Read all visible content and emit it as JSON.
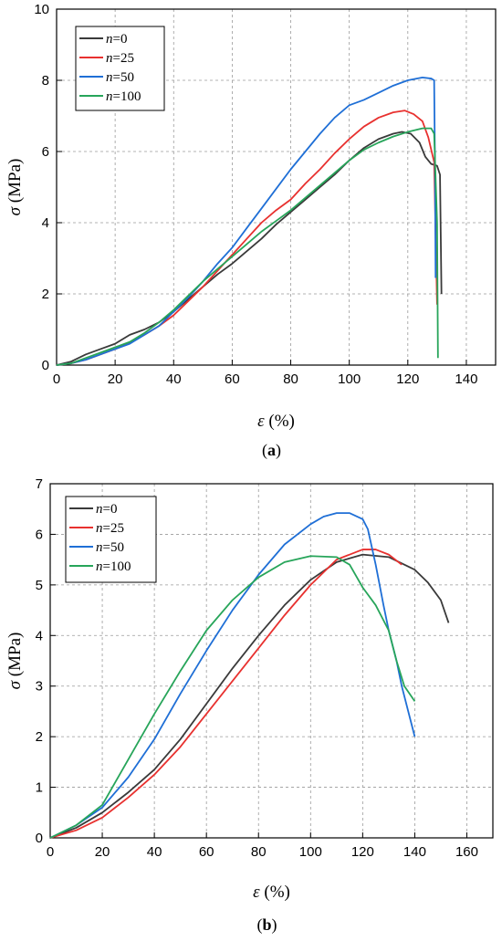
{
  "chart_data": [
    {
      "type": "line",
      "caption_prefix": "(",
      "caption_letter": "a",
      "caption_suffix": ")",
      "xlabel_symbol": "ε",
      "xlabel_unit": " (%)",
      "ylabel_symbol": "σ",
      "ylabel_unit": " (MPa)",
      "xlim": [
        0,
        150
      ],
      "ylim": [
        0,
        10
      ],
      "xticks": [
        0,
        20,
        40,
        60,
        80,
        100,
        120,
        140
      ],
      "yticks": [
        0,
        2,
        4,
        6,
        8,
        10
      ],
      "grid": true,
      "legend_position": "top-left",
      "series": [
        {
          "name_var": "n",
          "name_val": "=0",
          "color": "#3a3a3a",
          "points": [
            [
              0,
              0
            ],
            [
              5,
              0.1
            ],
            [
              10,
              0.3
            ],
            [
              15,
              0.45
            ],
            [
              20,
              0.6
            ],
            [
              25,
              0.85
            ],
            [
              30,
              1.0
            ],
            [
              35,
              1.2
            ],
            [
              40,
              1.5
            ],
            [
              45,
              1.85
            ],
            [
              50,
              2.2
            ],
            [
              55,
              2.55
            ],
            [
              60,
              2.85
            ],
            [
              65,
              3.2
            ],
            [
              70,
              3.55
            ],
            [
              75,
              3.95
            ],
            [
              80,
              4.3
            ],
            [
              85,
              4.65
            ],
            [
              90,
              5.0
            ],
            [
              95,
              5.35
            ],
            [
              100,
              5.75
            ],
            [
              105,
              6.1
            ],
            [
              110,
              6.35
            ],
            [
              115,
              6.5
            ],
            [
              118,
              6.55
            ],
            [
              121,
              6.5
            ],
            [
              124,
              6.25
            ],
            [
              126,
              5.85
            ],
            [
              128,
              5.65
            ],
            [
              130,
              5.6
            ],
            [
              131,
              5.35
            ],
            [
              131.5,
              2.0
            ]
          ]
        },
        {
          "name_var": "n",
          "name_val": "=25",
          "color": "#e8312f",
          "points": [
            [
              0,
              0
            ],
            [
              5,
              0.05
            ],
            [
              10,
              0.15
            ],
            [
              15,
              0.3
            ],
            [
              20,
              0.45
            ],
            [
              25,
              0.62
            ],
            [
              30,
              0.85
            ],
            [
              35,
              1.1
            ],
            [
              40,
              1.4
            ],
            [
              45,
              1.8
            ],
            [
              50,
              2.2
            ],
            [
              55,
              2.65
            ],
            [
              60,
              3.1
            ],
            [
              65,
              3.55
            ],
            [
              70,
              4.0
            ],
            [
              75,
              4.35
            ],
            [
              80,
              4.65
            ],
            [
              85,
              5.1
            ],
            [
              90,
              5.5
            ],
            [
              95,
              5.95
            ],
            [
              100,
              6.35
            ],
            [
              105,
              6.7
            ],
            [
              110,
              6.95
            ],
            [
              115,
              7.1
            ],
            [
              119,
              7.15
            ],
            [
              122,
              7.05
            ],
            [
              125,
              6.85
            ],
            [
              127,
              6.4
            ],
            [
              129,
              5.7
            ],
            [
              130,
              1.7
            ]
          ]
        },
        {
          "name_var": "n",
          "name_val": "=50",
          "color": "#1f6fd6",
          "points": [
            [
              0,
              0
            ],
            [
              5,
              0.05
            ],
            [
              10,
              0.15
            ],
            [
              15,
              0.3
            ],
            [
              20,
              0.45
            ],
            [
              25,
              0.6
            ],
            [
              30,
              0.85
            ],
            [
              35,
              1.1
            ],
            [
              40,
              1.5
            ],
            [
              45,
              1.9
            ],
            [
              50,
              2.35
            ],
            [
              55,
              2.85
            ],
            [
              60,
              3.3
            ],
            [
              65,
              3.85
            ],
            [
              70,
              4.4
            ],
            [
              75,
              4.95
            ],
            [
              80,
              5.5
            ],
            [
              85,
              6.0
            ],
            [
              90,
              6.5
            ],
            [
              95,
              6.95
            ],
            [
              100,
              7.3
            ],
            [
              105,
              7.45
            ],
            [
              110,
              7.65
            ],
            [
              115,
              7.85
            ],
            [
              120,
              8.0
            ],
            [
              125,
              8.08
            ],
            [
              128,
              8.05
            ],
            [
              129,
              8.0
            ],
            [
              129.3,
              5.5
            ],
            [
              129.5,
              2.45
            ]
          ]
        },
        {
          "name_var": "n",
          "name_val": "=100",
          "color": "#27a55a",
          "points": [
            [
              0,
              0
            ],
            [
              5,
              0.05
            ],
            [
              10,
              0.2
            ],
            [
              15,
              0.35
            ],
            [
              20,
              0.5
            ],
            [
              25,
              0.65
            ],
            [
              30,
              0.9
            ],
            [
              35,
              1.2
            ],
            [
              40,
              1.55
            ],
            [
              45,
              1.95
            ],
            [
              50,
              2.35
            ],
            [
              55,
              2.7
            ],
            [
              60,
              3.05
            ],
            [
              65,
              3.4
            ],
            [
              70,
              3.75
            ],
            [
              75,
              4.05
            ],
            [
              80,
              4.35
            ],
            [
              85,
              4.7
            ],
            [
              90,
              5.05
            ],
            [
              95,
              5.4
            ],
            [
              100,
              5.75
            ],
            [
              105,
              6.05
            ],
            [
              110,
              6.25
            ],
            [
              115,
              6.42
            ],
            [
              120,
              6.55
            ],
            [
              125,
              6.65
            ],
            [
              128,
              6.65
            ],
            [
              129,
              6.5
            ],
            [
              130,
              4.0
            ],
            [
              130.3,
              0.2
            ]
          ]
        }
      ]
    },
    {
      "type": "line",
      "caption_prefix": "(",
      "caption_letter": "b",
      "caption_suffix": ")",
      "xlabel_symbol": "ε",
      "xlabel_unit": " (%)",
      "ylabel_symbol": "σ",
      "ylabel_unit": " (MPa)",
      "xlim": [
        0,
        170
      ],
      "ylim": [
        0,
        7
      ],
      "xticks": [
        0,
        20,
        40,
        60,
        80,
        100,
        120,
        140,
        160
      ],
      "yticks": [
        0,
        1,
        2,
        3,
        4,
        5,
        6,
        7
      ],
      "grid": true,
      "legend_position": "top-left",
      "series": [
        {
          "name_var": "n",
          "name_val": "=0",
          "color": "#3a3a3a",
          "points": [
            [
              0,
              0
            ],
            [
              10,
              0.2
            ],
            [
              20,
              0.5
            ],
            [
              30,
              0.9
            ],
            [
              40,
              1.35
            ],
            [
              50,
              1.95
            ],
            [
              60,
              2.65
            ],
            [
              70,
              3.35
            ],
            [
              80,
              4.0
            ],
            [
              90,
              4.6
            ],
            [
              100,
              5.1
            ],
            [
              110,
              5.45
            ],
            [
              120,
              5.6
            ],
            [
              130,
              5.55
            ],
            [
              140,
              5.3
            ],
            [
              145,
              5.05
            ],
            [
              150,
              4.7
            ],
            [
              153,
              4.25
            ]
          ]
        },
        {
          "name_var": "n",
          "name_val": "=25",
          "color": "#e8312f",
          "points": [
            [
              0,
              0
            ],
            [
              10,
              0.15
            ],
            [
              20,
              0.4
            ],
            [
              30,
              0.8
            ],
            [
              40,
              1.25
            ],
            [
              50,
              1.8
            ],
            [
              60,
              2.45
            ],
            [
              70,
              3.1
            ],
            [
              80,
              3.75
            ],
            [
              90,
              4.4
            ],
            [
              100,
              5.0
            ],
            [
              110,
              5.5
            ],
            [
              120,
              5.7
            ],
            [
              125,
              5.7
            ],
            [
              130,
              5.6
            ],
            [
              135,
              5.4
            ]
          ]
        },
        {
          "name_var": "n",
          "name_val": "=50",
          "color": "#1f6fd6",
          "points": [
            [
              0,
              0
            ],
            [
              10,
              0.25
            ],
            [
              20,
              0.6
            ],
            [
              30,
              1.2
            ],
            [
              40,
              1.95
            ],
            [
              50,
              2.85
            ],
            [
              60,
              3.7
            ],
            [
              70,
              4.5
            ],
            [
              80,
              5.2
            ],
            [
              90,
              5.8
            ],
            [
              100,
              6.2
            ],
            [
              105,
              6.35
            ],
            [
              110,
              6.42
            ],
            [
              115,
              6.42
            ],
            [
              120,
              6.3
            ],
            [
              122,
              6.1
            ],
            [
              125,
              5.4
            ],
            [
              128,
              4.6
            ],
            [
              130,
              4.1
            ],
            [
              133,
              3.5
            ],
            [
              135,
              3.0
            ],
            [
              138,
              2.4
            ],
            [
              140,
              2.0
            ]
          ]
        },
        {
          "name_var": "n",
          "name_val": "=100",
          "color": "#27a55a",
          "points": [
            [
              0,
              0
            ],
            [
              10,
              0.25
            ],
            [
              20,
              0.65
            ],
            [
              30,
              1.55
            ],
            [
              40,
              2.45
            ],
            [
              50,
              3.3
            ],
            [
              60,
              4.1
            ],
            [
              70,
              4.7
            ],
            [
              80,
              5.15
            ],
            [
              90,
              5.45
            ],
            [
              100,
              5.57
            ],
            [
              110,
              5.55
            ],
            [
              115,
              5.4
            ],
            [
              120,
              4.95
            ],
            [
              125,
              4.6
            ],
            [
              130,
              4.1
            ],
            [
              133,
              3.5
            ],
            [
              136,
              3.0
            ],
            [
              140,
              2.7
            ]
          ]
        }
      ]
    }
  ]
}
